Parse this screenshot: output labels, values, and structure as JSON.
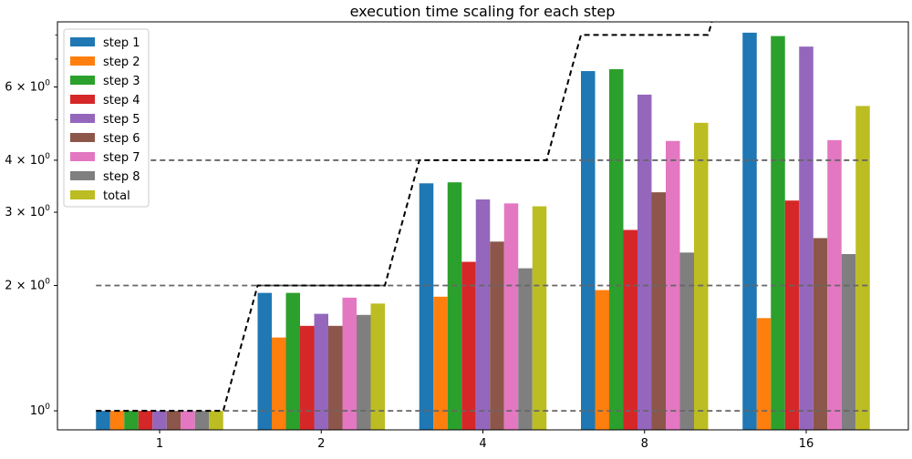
{
  "chart_data": {
    "type": "bar",
    "title": "execution time scaling for each step",
    "xlabel": "",
    "ylabel": "",
    "yscale": "log",
    "ylim": [
      0.9,
      8.6
    ],
    "categories": [
      "1",
      "2",
      "4",
      "8",
      "16"
    ],
    "y_tick_labels": [
      {
        "value": 1,
        "base": "10",
        "exp": "0",
        "mult": ""
      },
      {
        "value": 2,
        "base": "10",
        "exp": "0",
        "mult": "2 × "
      },
      {
        "value": 3,
        "base": "10",
        "exp": "0",
        "mult": "3 × "
      },
      {
        "value": 4,
        "base": "10",
        "exp": "0",
        "mult": "4 × "
      },
      {
        "value": 6,
        "base": "10",
        "exp": "0",
        "mult": "6 × "
      }
    ],
    "series": [
      {
        "name": "step 1",
        "color": "#1f77b4",
        "values": [
          1.0,
          1.92,
          3.52,
          6.55,
          8.1
        ]
      },
      {
        "name": "step 2",
        "color": "#ff7f0e",
        "values": [
          1.0,
          1.5,
          1.88,
          1.95,
          1.67
        ]
      },
      {
        "name": "step 3",
        "color": "#2ca02c",
        "values": [
          1.0,
          1.92,
          3.54,
          6.62,
          7.95
        ]
      },
      {
        "name": "step 4",
        "color": "#d62728",
        "values": [
          1.0,
          1.6,
          2.28,
          2.72,
          3.2
        ]
      },
      {
        "name": "step 5",
        "color": "#9467bd",
        "values": [
          1.0,
          1.71,
          3.22,
          5.75,
          7.5
        ]
      },
      {
        "name": "step 6",
        "color": "#8c564b",
        "values": [
          1.0,
          1.6,
          2.55,
          3.35,
          2.6
        ]
      },
      {
        "name": "step 7",
        "color": "#e377c2",
        "values": [
          1.0,
          1.87,
          3.15,
          4.45,
          4.47
        ]
      },
      {
        "name": "step 8",
        "color": "#7f7f7f",
        "values": [
          1.0,
          1.7,
          2.2,
          2.4,
          2.38
        ]
      },
      {
        "name": "total",
        "color": "#bcbd22",
        "values": [
          1.0,
          1.81,
          3.1,
          4.92,
          5.4
        ]
      }
    ],
    "ideal_line": {
      "color": "#000000",
      "style": "dashed",
      "values": [
        1,
        2,
        4,
        8,
        16
      ]
    },
    "reference_lines": {
      "color": "#666666",
      "style": "dashed",
      "values": [
        1,
        2,
        4
      ]
    },
    "legend": {
      "placement": "top-left"
    },
    "grid": false
  }
}
